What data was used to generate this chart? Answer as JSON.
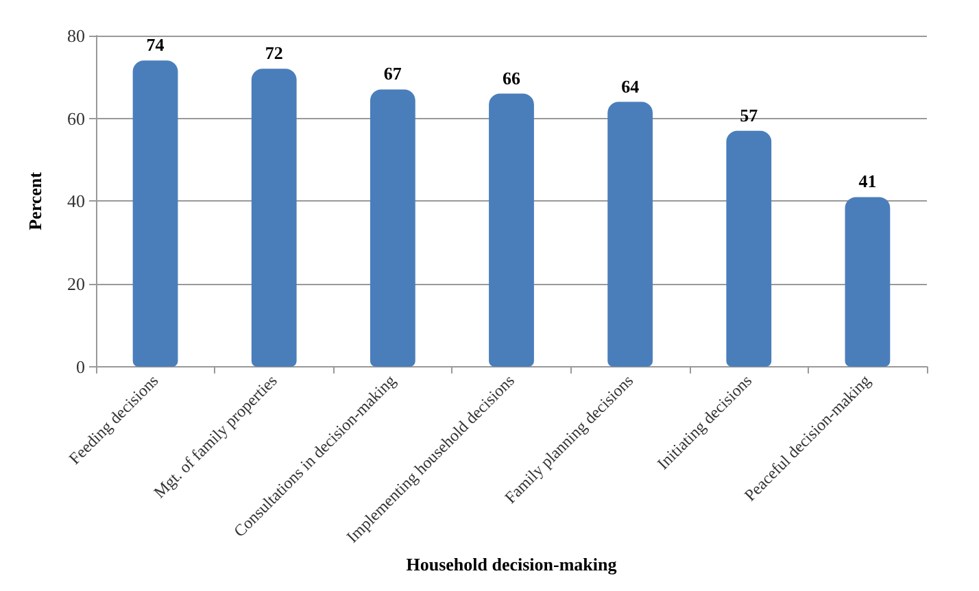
{
  "chart_data": {
    "type": "bar",
    "xlabel": "Household decision-making",
    "ylabel": "Percent",
    "categories": [
      "Feeding decisions",
      "Mgt. of family properties",
      "Consultations in decision-making",
      "Implementing household decisions",
      "Family planning decisions",
      "Initiating decisions",
      "Peaceful decision-making"
    ],
    "values": [
      74,
      72,
      67,
      66,
      64,
      57,
      41
    ],
    "color": "#4a7ebb",
    "ylim": [
      0,
      80
    ],
    "yticks": [
      0,
      20,
      40,
      60,
      80
    ],
    "grid": "y",
    "data_labels": true
  }
}
